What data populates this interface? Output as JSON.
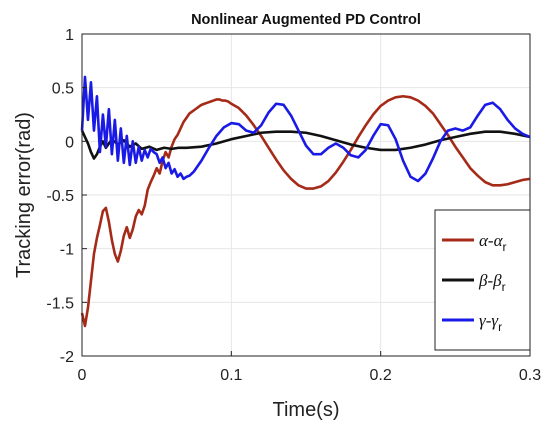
{
  "chart_data": {
    "type": "line",
    "title": "Nonlinear Augmented PD Control",
    "xlabel": "Time(s)",
    "ylabel": "Tracking error(rad)",
    "xlim": [
      0,
      0.3
    ],
    "ylim": [
      -2,
      1
    ],
    "xticks": [
      0,
      0.1,
      0.2,
      0.3
    ],
    "xtick_labels": [
      "0",
      "0.1",
      "0.2",
      "0.3"
    ],
    "yticks": [
      1,
      0.5,
      0,
      -0.5,
      -1,
      -1.5,
      -2
    ],
    "ytick_labels": [
      "1",
      "0.5",
      "0",
      "-0.5",
      "-1",
      "-1.5",
      "-2"
    ],
    "grid": true,
    "legend_position": "bottom-right",
    "series": [
      {
        "name": "α-α",
        "subscript": "r",
        "color": "#a52a18",
        "x": [
          0,
          0.002,
          0.004,
          0.006,
          0.008,
          0.01,
          0.012,
          0.014,
          0.016,
          0.018,
          0.02,
          0.022,
          0.024,
          0.026,
          0.028,
          0.03,
          0.032,
          0.034,
          0.036,
          0.038,
          0.04,
          0.042,
          0.044,
          0.046,
          0.048,
          0.05,
          0.052,
          0.054,
          0.056,
          0.058,
          0.06,
          0.062,
          0.064,
          0.066,
          0.068,
          0.07,
          0.072,
          0.074,
          0.076,
          0.078,
          0.08,
          0.082,
          0.084,
          0.086,
          0.088,
          0.09,
          0.092,
          0.094,
          0.096,
          0.098,
          0.1,
          0.105,
          0.11,
          0.115,
          0.12,
          0.125,
          0.13,
          0.135,
          0.14,
          0.145,
          0.15,
          0.155,
          0.16,
          0.165,
          0.17,
          0.175,
          0.18,
          0.185,
          0.19,
          0.195,
          0.2,
          0.205,
          0.21,
          0.215,
          0.22,
          0.225,
          0.23,
          0.235,
          0.24,
          0.245,
          0.25,
          0.255,
          0.26,
          0.265,
          0.27,
          0.275,
          0.28,
          0.285,
          0.29,
          0.295,
          0.3
        ],
        "y": [
          -1.6,
          -1.72,
          -1.55,
          -1.3,
          -1.05,
          -0.9,
          -0.78,
          -0.65,
          -0.62,
          -0.75,
          -0.92,
          -1.05,
          -1.12,
          -1.02,
          -0.88,
          -0.8,
          -0.9,
          -0.82,
          -0.7,
          -0.64,
          -0.68,
          -0.6,
          -0.45,
          -0.38,
          -0.32,
          -0.25,
          -0.3,
          -0.18,
          -0.1,
          -0.15,
          -0.05,
          0.02,
          0.06,
          0.12,
          0.18,
          0.22,
          0.26,
          0.28,
          0.3,
          0.32,
          0.34,
          0.35,
          0.36,
          0.37,
          0.38,
          0.39,
          0.39,
          0.38,
          0.38,
          0.37,
          0.35,
          0.31,
          0.24,
          0.15,
          0.05,
          -0.06,
          -0.17,
          -0.27,
          -0.35,
          -0.41,
          -0.44,
          -0.44,
          -0.42,
          -0.37,
          -0.29,
          -0.19,
          -0.08,
          0.04,
          0.15,
          0.25,
          0.33,
          0.38,
          0.41,
          0.42,
          0.41,
          0.38,
          0.33,
          0.26,
          0.16,
          0.06,
          -0.05,
          -0.15,
          -0.25,
          -0.32,
          -0.38,
          -0.41,
          -0.41,
          -0.4,
          -0.38,
          -0.36,
          -0.35
        ]
      },
      {
        "name": "β-β",
        "subscript": "r",
        "color": "#111111",
        "x": [
          0,
          0.002,
          0.004,
          0.006,
          0.008,
          0.01,
          0.012,
          0.014,
          0.016,
          0.018,
          0.02,
          0.024,
          0.028,
          0.032,
          0.036,
          0.04,
          0.045,
          0.05,
          0.055,
          0.06,
          0.065,
          0.07,
          0.08,
          0.09,
          0.1,
          0.11,
          0.12,
          0.13,
          0.14,
          0.15,
          0.16,
          0.17,
          0.18,
          0.19,
          0.2,
          0.21,
          0.22,
          0.23,
          0.24,
          0.25,
          0.26,
          0.27,
          0.28,
          0.29,
          0.3
        ],
        "y": [
          0.1,
          0.04,
          -0.02,
          -0.1,
          -0.16,
          -0.12,
          -0.05,
          0.0,
          -0.06,
          -0.02,
          0.02,
          -0.03,
          0.01,
          -0.05,
          -0.02,
          -0.07,
          -0.05,
          -0.08,
          -0.06,
          -0.07,
          -0.06,
          -0.06,
          -0.05,
          -0.02,
          0.02,
          0.05,
          0.08,
          0.09,
          0.09,
          0.08,
          0.05,
          0.01,
          -0.03,
          -0.06,
          -0.08,
          -0.08,
          -0.06,
          -0.03,
          0.01,
          0.04,
          0.07,
          0.09,
          0.09,
          0.07,
          0.04
        ]
      },
      {
        "name": "γ-γ",
        "subscript": "r",
        "color": "#1a1ae6",
        "x": [
          0,
          0.002,
          0.004,
          0.006,
          0.008,
          0.01,
          0.012,
          0.014,
          0.016,
          0.018,
          0.02,
          0.022,
          0.024,
          0.026,
          0.028,
          0.03,
          0.032,
          0.034,
          0.036,
          0.038,
          0.04,
          0.042,
          0.044,
          0.046,
          0.048,
          0.05,
          0.052,
          0.054,
          0.056,
          0.058,
          0.06,
          0.062,
          0.064,
          0.066,
          0.068,
          0.07,
          0.072,
          0.075,
          0.08,
          0.085,
          0.09,
          0.095,
          0.1,
          0.105,
          0.11,
          0.115,
          0.12,
          0.125,
          0.13,
          0.135,
          0.14,
          0.145,
          0.15,
          0.155,
          0.16,
          0.165,
          0.17,
          0.175,
          0.18,
          0.185,
          0.19,
          0.195,
          0.2,
          0.205,
          0.21,
          0.215,
          0.22,
          0.225,
          0.23,
          0.235,
          0.24,
          0.245,
          0.25,
          0.255,
          0.26,
          0.265,
          0.27,
          0.275,
          0.28,
          0.285,
          0.29,
          0.295,
          0.3
        ],
        "y": [
          0.1,
          0.6,
          0.2,
          0.55,
          0.1,
          0.42,
          -0.1,
          0.25,
          -0.05,
          0.3,
          -0.12,
          0.2,
          -0.18,
          0.12,
          -0.2,
          0.05,
          -0.22,
          0.0,
          -0.2,
          -0.05,
          -0.18,
          -0.08,
          -0.15,
          -0.07,
          -0.1,
          -0.12,
          -0.2,
          -0.15,
          -0.25,
          -0.2,
          -0.3,
          -0.26,
          -0.33,
          -0.3,
          -0.35,
          -0.33,
          -0.32,
          -0.28,
          -0.18,
          -0.06,
          0.05,
          0.13,
          0.17,
          0.16,
          0.1,
          0.08,
          0.15,
          0.27,
          0.35,
          0.34,
          0.24,
          0.1,
          -0.04,
          -0.12,
          -0.12,
          -0.06,
          -0.02,
          -0.06,
          -0.13,
          -0.15,
          -0.08,
          0.05,
          0.16,
          0.15,
          0.02,
          -0.18,
          -0.33,
          -0.37,
          -0.3,
          -0.16,
          0.0,
          0.1,
          0.12,
          0.1,
          0.13,
          0.24,
          0.34,
          0.36,
          0.3,
          0.2,
          0.12,
          0.07,
          0.04
        ]
      }
    ]
  }
}
